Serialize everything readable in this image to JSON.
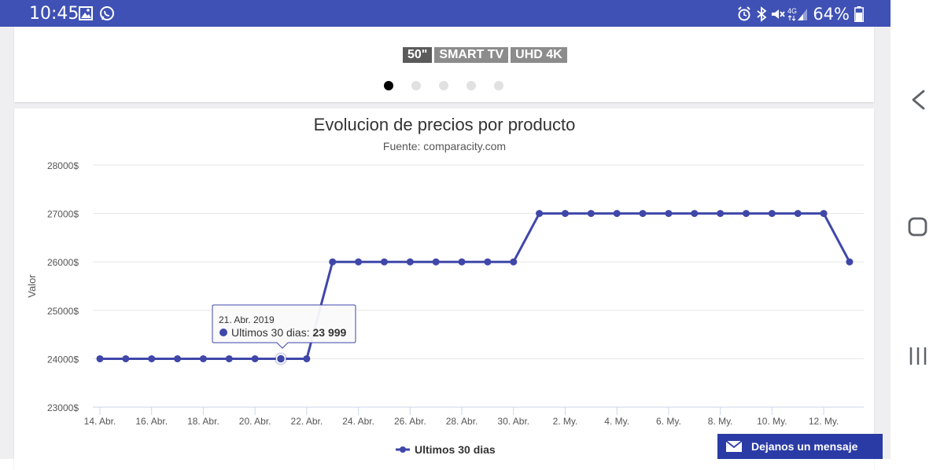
{
  "status_bar": {
    "time": "10:45",
    "battery": "64%",
    "network": "4G",
    "icons_left": [
      "gallery-icon",
      "whatsapp-icon"
    ],
    "icons_right": [
      "alarm-icon",
      "bluetooth-icon",
      "mute-icon",
      "signal-icon",
      "battery-icon"
    ]
  },
  "product_card": {
    "badges": [
      "50\"",
      "SMART TV",
      "UHD 4K"
    ],
    "carousel_dots": 5,
    "active_dot": 0
  },
  "tooltip": {
    "date": "21. Abr. 2019",
    "series": "Ultimos 30 dias",
    "separator": ": ",
    "value": "23 999"
  },
  "message_button": {
    "label": "Dejanos un mensaje",
    "icon": "mail-icon"
  },
  "navigation": {
    "icons": [
      "back-icon",
      "home-icon",
      "recents-icon"
    ]
  },
  "chart_data": {
    "type": "line",
    "title": "Evolucion de precios por producto",
    "subtitle": "Fuente: comparacity.com",
    "xlabel": "",
    "ylabel": "Valor",
    "ylim": [
      23000,
      28000
    ],
    "yticks": [
      23000,
      24000,
      25000,
      26000,
      27000,
      28000
    ],
    "ytick_labels": [
      "23000$",
      "24000$",
      "25000$",
      "26000$",
      "27000$",
      "28000$"
    ],
    "xticks": [
      "14. Abr.",
      "16. Abr.",
      "18. Abr.",
      "20. Abr.",
      "22. Abr.",
      "24. Abr.",
      "26. Abr.",
      "28. Abr.",
      "30. Abr.",
      "2. My.",
      "4. My.",
      "6. My.",
      "8. My.",
      "10. My.",
      "12. My."
    ],
    "grid": true,
    "legend_position": "bottom-center",
    "color": "#3f47a9",
    "highlight_index": 7,
    "series": [
      {
        "name": "Ultimos 30 dias",
        "x": [
          "14. Abr.",
          "15. Abr.",
          "16. Abr.",
          "17. Abr.",
          "18. Abr.",
          "19. Abr.",
          "20. Abr.",
          "21. Abr.",
          "22. Abr.",
          "23. Abr.",
          "24. Abr.",
          "25. Abr.",
          "26. Abr.",
          "27. Abr.",
          "28. Abr.",
          "29. Abr.",
          "30. Abr.",
          "1. My.",
          "2. My.",
          "3. My.",
          "4. My.",
          "5. My.",
          "6. My.",
          "7. My.",
          "8. My.",
          "9. My.",
          "10. My.",
          "11. My.",
          "12. My.",
          "13. My."
        ],
        "values": [
          23999,
          23999,
          23999,
          23999,
          23999,
          23999,
          23999,
          23999,
          23999,
          26000,
          26000,
          26000,
          26000,
          26000,
          26000,
          26000,
          26000,
          27000,
          27000,
          27000,
          27000,
          27000,
          27000,
          27000,
          27000,
          27000,
          27000,
          27000,
          27000,
          26000
        ]
      }
    ]
  }
}
